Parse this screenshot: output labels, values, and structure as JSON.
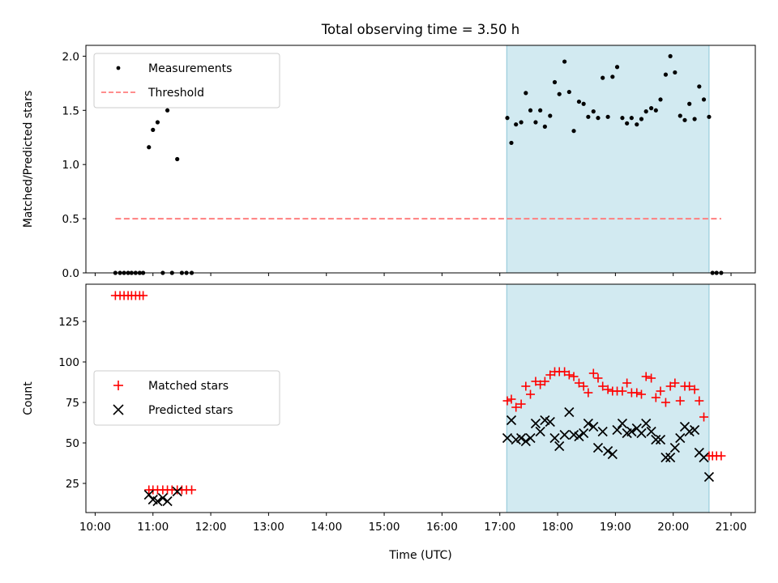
{
  "chart_data": {
    "type": "scatter",
    "title": "Total observing time = 3.50 h",
    "xlabel": "Time (UTC)",
    "x_ticks": [
      "10:00",
      "11:00",
      "12:00",
      "13:00",
      "14:00",
      "15:00",
      "16:00",
      "17:00",
      "18:00",
      "19:00",
      "20:00",
      "21:00"
    ],
    "xlim": [
      9.84,
      21.42
    ],
    "shaded_interval": {
      "start": 17.12,
      "end": 20.62,
      "color": "#add8e6"
    },
    "panels": [
      {
        "ylabel": "Matched/Predicted stars",
        "ylim": [
          0.0,
          2.1
        ],
        "y_ticks": [
          "0.0",
          "0.5",
          "1.0",
          "1.5",
          "2.0"
        ],
        "y_tick_values": [
          0.0,
          0.5,
          1.0,
          1.5,
          2.0
        ],
        "legend": {
          "position": "upper left",
          "entries": [
            "Measurements",
            "Threshold"
          ]
        },
        "series": [
          {
            "name": "Measurements",
            "marker": "dot",
            "color": "#000000",
            "x": [
              10.35,
              10.43,
              10.5,
              10.57,
              10.63,
              10.7,
              10.77,
              10.83,
              10.93,
              11.0,
              11.08,
              11.17,
              11.25,
              11.33,
              11.42,
              11.5,
              11.58,
              11.67,
              17.13,
              17.2,
              17.28,
              17.37,
              17.45,
              17.53,
              17.62,
              17.7,
              17.78,
              17.87,
              17.95,
              18.03,
              18.12,
              18.2,
              18.28,
              18.37,
              18.45,
              18.53,
              18.62,
              18.7,
              18.78,
              18.87,
              18.95,
              19.03,
              19.12,
              19.2,
              19.28,
              19.37,
              19.45,
              19.53,
              19.62,
              19.7,
              19.78,
              19.87,
              19.95,
              20.03,
              20.12,
              20.2,
              20.28,
              20.37,
              20.45,
              20.53,
              20.62,
              20.68,
              20.75,
              20.83
            ],
            "y": [
              0.0,
              0.0,
              0.0,
              0.0,
              0.0,
              0.0,
              0.0,
              0.0,
              1.16,
              1.32,
              1.39,
              0.0,
              1.5,
              0.0,
              1.05,
              0.0,
              0.0,
              0.0,
              1.43,
              1.2,
              1.37,
              1.39,
              1.66,
              1.5,
              1.39,
              1.5,
              1.35,
              1.45,
              1.76,
              1.65,
              1.95,
              1.67,
              1.31,
              1.58,
              1.56,
              1.44,
              1.49,
              1.43,
              1.8,
              1.44,
              1.81,
              1.9,
              1.43,
              1.38,
              1.43,
              1.37,
              1.42,
              1.49,
              1.52,
              1.5,
              1.6,
              1.83,
              2.0,
              1.85,
              1.45,
              1.41,
              1.56,
              1.42,
              1.72,
              1.6,
              1.44,
              0.0,
              0.0,
              0.0
            ]
          },
          {
            "name": "Threshold",
            "marker": "dashed-line",
            "color": "#ff7f7f",
            "x": [
              10.35,
              20.83
            ],
            "y": [
              0.5,
              0.5
            ]
          }
        ]
      },
      {
        "ylabel": "Count",
        "ylim": [
          7,
          148
        ],
        "y_ticks": [
          "25",
          "50",
          "75",
          "100",
          "125"
        ],
        "y_tick_values": [
          25,
          50,
          75,
          100,
          125
        ],
        "legend": {
          "position": "center left",
          "entries": [
            "Matched stars",
            "Predicted stars"
          ]
        },
        "series": [
          {
            "name": "Matched stars",
            "marker": "plus",
            "color": "#ff0000",
            "x": [
              10.35,
              10.43,
              10.5,
              10.57,
              10.63,
              10.7,
              10.77,
              10.83,
              10.93,
              11.0,
              11.08,
              11.17,
              11.25,
              11.33,
              11.42,
              11.5,
              11.58,
              11.67,
              17.13,
              17.2,
              17.28,
              17.37,
              17.45,
              17.53,
              17.62,
              17.7,
              17.78,
              17.87,
              17.95,
              18.03,
              18.12,
              18.2,
              18.28,
              18.37,
              18.45,
              18.53,
              18.62,
              18.7,
              18.78,
              18.87,
              18.95,
              19.03,
              19.12,
              19.2,
              19.28,
              19.37,
              19.45,
              19.53,
              19.62,
              19.7,
              19.78,
              19.87,
              19.95,
              20.03,
              20.12,
              20.2,
              20.28,
              20.37,
              20.45,
              20.53,
              20.62,
              20.68,
              20.75,
              20.83
            ],
            "y": [
              141,
              141,
              141,
              141,
              141,
              141,
              141,
              141,
              21,
              21,
              21,
              21,
              21,
              21,
              21,
              21,
              21,
              21,
              76,
              77,
              72,
              74,
              85,
              80,
              88,
              86,
              88,
              92,
              94,
              94,
              94,
              92,
              91,
              87,
              85,
              81,
              93,
              90,
              85,
              83,
              82,
              82,
              82,
              87,
              81,
              81,
              80,
              91,
              90,
              78,
              82,
              75,
              85,
              87,
              76,
              85,
              85,
              83,
              76,
              66,
              42,
              42,
              42,
              42
            ]
          },
          {
            "name": "Predicted stars",
            "marker": "x",
            "color": "#000000",
            "x": [
              10.93,
              11.0,
              11.08,
              11.17,
              11.25,
              11.42,
              17.13,
              17.2,
              17.28,
              17.37,
              17.45,
              17.53,
              17.62,
              17.7,
              17.78,
              17.87,
              17.95,
              18.03,
              18.12,
              18.2,
              18.28,
              18.37,
              18.45,
              18.53,
              18.62,
              18.7,
              18.78,
              18.87,
              18.95,
              19.03,
              19.12,
              19.2,
              19.28,
              19.37,
              19.45,
              19.53,
              19.62,
              19.7,
              19.78,
              19.87,
              19.95,
              20.03,
              20.12,
              20.2,
              20.28,
              20.37,
              20.45,
              20.53,
              20.62
            ],
            "y": [
              18,
              15,
              14,
              16,
              14,
              20,
              53,
              64,
              52,
              53,
              51,
              53,
              62,
              57,
              64,
              63,
              53,
              48,
              55,
              69,
              55,
              54,
              56,
              62,
              60,
              47,
              57,
              45,
              43,
              58,
              62,
              56,
              57,
              59,
              56,
              62,
              57,
              52,
              52,
              41,
              41,
              47,
              53,
              60,
              57,
              58,
              44,
              41,
              29
            ]
          }
        ]
      }
    ]
  }
}
